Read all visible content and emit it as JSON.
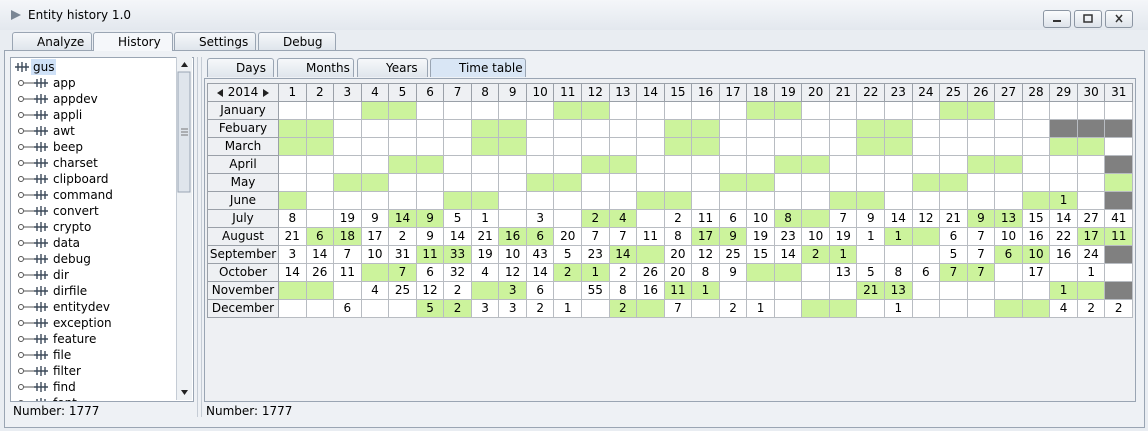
{
  "window": {
    "title": "Entity history 1.0"
  },
  "tabs": [
    "Analyze",
    "History",
    "Settings",
    "Debug"
  ],
  "tree": {
    "root": "gus",
    "children": [
      "app",
      "appdev",
      "appli",
      "awt",
      "beep",
      "charset",
      "clipboard",
      "command",
      "convert",
      "crypto",
      "data",
      "debug",
      "dir",
      "dirfile",
      "entitydev",
      "exception",
      "feature",
      "file",
      "filter",
      "find",
      "font"
    ],
    "status": "Number: 1777"
  },
  "subtabs": [
    "Days",
    "Months",
    "Years",
    "Time table"
  ],
  "timetable": {
    "year": "2014",
    "highlight_color": "#ccf39c",
    "missing_color": "#808080",
    "days": [
      1,
      2,
      3,
      4,
      5,
      6,
      7,
      8,
      9,
      10,
      11,
      12,
      13,
      14,
      15,
      16,
      17,
      18,
      19,
      20,
      21,
      22,
      23,
      24,
      25,
      26,
      27,
      28,
      29,
      30,
      31
    ],
    "rows": [
      {
        "month": "January",
        "counts": [
          null,
          null,
          null,
          null,
          null,
          null,
          null,
          null,
          null,
          null,
          null,
          null,
          null,
          null,
          null,
          null,
          null,
          null,
          null,
          null,
          null,
          null,
          null,
          null,
          null,
          null,
          null,
          null,
          null,
          null,
          null
        ],
        "highlighted_days": [
          4,
          5,
          11,
          12,
          18,
          19,
          25,
          26
        ],
        "missing_days": []
      },
      {
        "month": "Febuary",
        "counts": [
          null,
          null,
          null,
          null,
          null,
          null,
          null,
          null,
          null,
          null,
          null,
          null,
          null,
          null,
          null,
          null,
          null,
          null,
          null,
          null,
          null,
          null,
          null,
          null,
          null,
          null,
          null,
          null,
          null,
          null,
          null
        ],
        "highlighted_days": [
          1,
          2,
          8,
          9,
          15,
          16,
          22,
          23
        ],
        "missing_days": [
          29,
          30,
          31
        ]
      },
      {
        "month": "March",
        "counts": [
          null,
          null,
          null,
          null,
          null,
          null,
          null,
          null,
          null,
          null,
          null,
          null,
          null,
          null,
          null,
          null,
          null,
          null,
          null,
          null,
          null,
          null,
          null,
          null,
          null,
          null,
          null,
          null,
          null,
          null,
          null
        ],
        "highlighted_days": [
          1,
          2,
          8,
          9,
          15,
          16,
          22,
          23,
          29,
          30
        ],
        "missing_days": []
      },
      {
        "month": "April",
        "counts": [
          null,
          null,
          null,
          null,
          null,
          null,
          null,
          null,
          null,
          null,
          null,
          null,
          null,
          null,
          null,
          null,
          null,
          null,
          null,
          null,
          null,
          null,
          null,
          null,
          null,
          null,
          null,
          null,
          null,
          null,
          null
        ],
        "highlighted_days": [
          5,
          6,
          12,
          13,
          19,
          20,
          26,
          27
        ],
        "missing_days": [
          31
        ]
      },
      {
        "month": "May",
        "counts": [
          null,
          null,
          null,
          null,
          null,
          null,
          null,
          null,
          null,
          null,
          null,
          null,
          null,
          null,
          null,
          null,
          null,
          null,
          null,
          null,
          null,
          null,
          null,
          null,
          null,
          null,
          null,
          null,
          null,
          null,
          null
        ],
        "highlighted_days": [
          3,
          4,
          10,
          11,
          17,
          18,
          24,
          25,
          31
        ],
        "missing_days": []
      },
      {
        "month": "June",
        "counts": [
          null,
          null,
          null,
          null,
          null,
          null,
          null,
          null,
          null,
          null,
          null,
          null,
          null,
          null,
          null,
          null,
          null,
          null,
          null,
          null,
          null,
          null,
          null,
          null,
          null,
          null,
          null,
          null,
          1,
          null,
          null
        ],
        "highlighted_days": [
          1,
          7,
          8,
          14,
          15,
          21,
          22,
          28,
          29
        ],
        "missing_days": [
          31
        ]
      },
      {
        "month": "July",
        "counts": [
          8,
          null,
          19,
          9,
          14,
          9,
          5,
          1,
          null,
          3,
          null,
          2,
          4,
          null,
          2,
          11,
          6,
          10,
          8,
          null,
          7,
          9,
          14,
          12,
          21,
          9,
          13,
          15,
          14,
          27,
          41
        ],
        "highlighted_days": [
          5,
          6,
          12,
          13,
          19,
          20,
          26,
          27
        ],
        "missing_days": []
      },
      {
        "month": "August",
        "counts": [
          21,
          6,
          18,
          17,
          2,
          9,
          14,
          21,
          16,
          6,
          20,
          7,
          7,
          11,
          8,
          17,
          9,
          19,
          23,
          10,
          19,
          1,
          1,
          null,
          6,
          7,
          10,
          16,
          22,
          17,
          11
        ],
        "highlighted_days": [
          2,
          3,
          9,
          10,
          16,
          17,
          23,
          24,
          30,
          31
        ],
        "missing_days": []
      },
      {
        "month": "September",
        "counts": [
          3,
          14,
          7,
          10,
          31,
          11,
          33,
          19,
          10,
          43,
          5,
          23,
          14,
          null,
          20,
          12,
          25,
          15,
          14,
          2,
          1,
          null,
          null,
          null,
          5,
          7,
          6,
          10,
          16,
          24,
          null
        ],
        "highlighted_days": [
          6,
          7,
          13,
          14,
          20,
          21,
          27,
          28
        ],
        "missing_days": [
          31
        ]
      },
      {
        "month": "October",
        "counts": [
          14,
          26,
          11,
          null,
          7,
          6,
          32,
          4,
          12,
          14,
          2,
          1,
          2,
          26,
          20,
          8,
          9,
          null,
          null,
          null,
          13,
          5,
          8,
          6,
          7,
          7,
          null,
          17,
          null,
          1,
          null
        ],
        "highlighted_days": [
          4,
          5,
          11,
          12,
          18,
          19,
          25,
          26
        ],
        "missing_days": []
      },
      {
        "month": "November",
        "counts": [
          null,
          null,
          null,
          4,
          25,
          12,
          2,
          null,
          3,
          6,
          null,
          55,
          8,
          16,
          11,
          1,
          null,
          null,
          null,
          null,
          null,
          21,
          13,
          null,
          null,
          null,
          null,
          null,
          1,
          null,
          null
        ],
        "highlighted_days": [
          1,
          2,
          8,
          9,
          15,
          16,
          22,
          23,
          29,
          30
        ],
        "missing_days": [
          31
        ]
      },
      {
        "month": "December",
        "counts": [
          null,
          null,
          6,
          null,
          null,
          5,
          2,
          3,
          3,
          2,
          1,
          null,
          2,
          null,
          7,
          null,
          2,
          1,
          null,
          null,
          null,
          null,
          1,
          null,
          null,
          null,
          null,
          null,
          4,
          2,
          2
        ],
        "highlighted_days": [
          6,
          7,
          13,
          14,
          20,
          21,
          27,
          28
        ],
        "missing_days": []
      }
    ],
    "status": "Number: 1777"
  }
}
